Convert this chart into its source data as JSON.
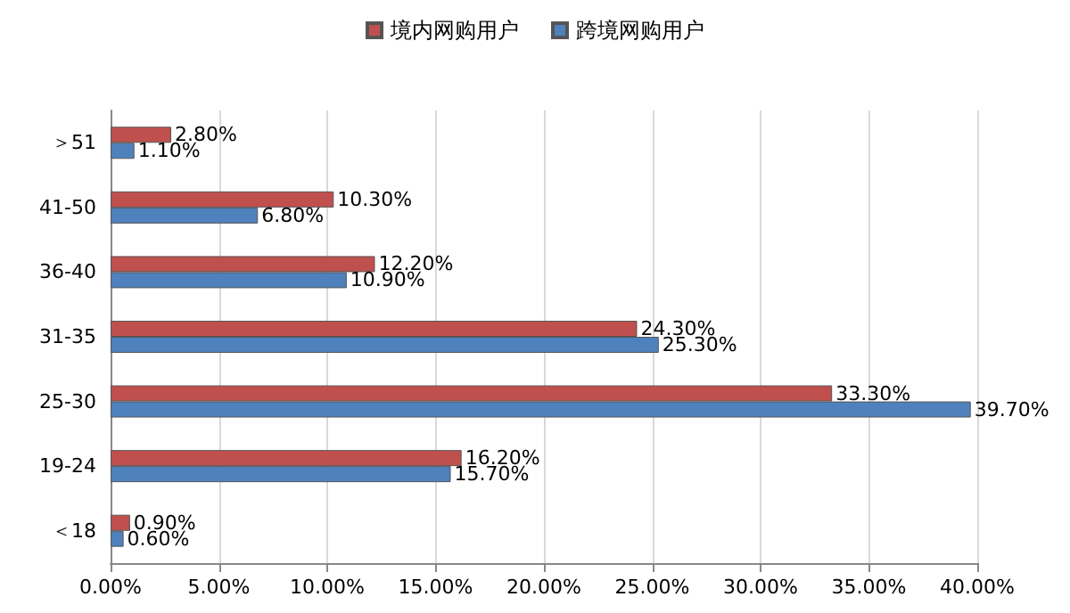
{
  "chart_data": {
    "type": "bar",
    "orientation": "horizontal",
    "categories": [
      "＞51",
      "41-50",
      "36-40",
      "31-35",
      "25-30",
      "19-24",
      "＜18"
    ],
    "series": [
      {
        "name": "境内网购用户",
        "color": "#c0504d",
        "values": [
          2.8,
          10.3,
          12.2,
          24.3,
          33.3,
          16.2,
          0.9
        ],
        "value_labels": [
          "2.80%",
          "10.30%",
          "12.20%",
          "24.30%",
          "33.30%",
          "16.20%",
          "0.90%"
        ]
      },
      {
        "name": "跨境网购用户",
        "color": "#4f81bd",
        "values": [
          1.1,
          6.8,
          10.9,
          25.3,
          39.7,
          15.7,
          0.6
        ],
        "value_labels": [
          "1.10%",
          "6.80%",
          "10.90%",
          "25.30%",
          "39.70%",
          "15.70%",
          "0.60%"
        ]
      }
    ],
    "xlim": [
      0,
      40
    ],
    "xticks": [
      {
        "value": 0,
        "label": "0.00%"
      },
      {
        "value": 5,
        "label": "5.00%"
      },
      {
        "value": 10,
        "label": "10.00%"
      },
      {
        "value": 15,
        "label": "15.00%"
      },
      {
        "value": 20,
        "label": "20.00%"
      },
      {
        "value": 25,
        "label": "25.00%"
      },
      {
        "value": 30,
        "label": "30.00%"
      },
      {
        "value": 35,
        "label": "35.00%"
      },
      {
        "value": 40,
        "label": "40.00%"
      }
    ],
    "grid": "x",
    "legend": "top"
  }
}
